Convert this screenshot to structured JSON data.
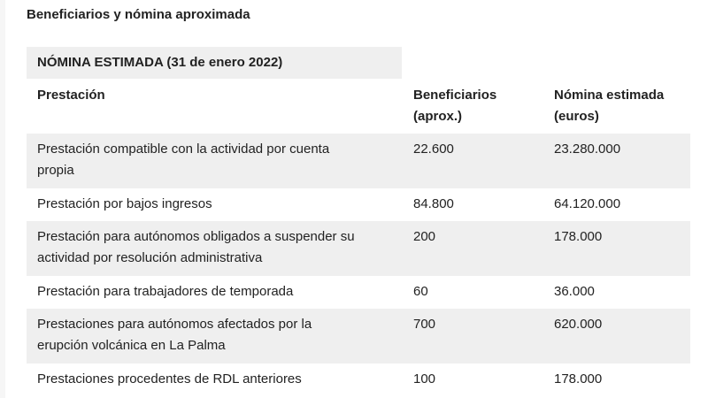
{
  "section_title": "Beneficiarios y nómina aproximada",
  "table": {
    "caption": "NÓMINA ESTIMADA (31 de enero 2022)",
    "headers": {
      "prestacion": "Prestación",
      "beneficiarios_1": "Beneficiarios",
      "beneficiarios_2": "(aprox.)",
      "nomina_1": "Nómina estimada",
      "nomina_2": "(euros)"
    },
    "rows": [
      {
        "prestacion_1": "Prestación compatible con la actividad por cuenta",
        "prestacion_2": "propia",
        "beneficiarios": "22.600",
        "nomina": "23.280.000"
      },
      {
        "prestacion_1": "Prestación por bajos ingresos",
        "prestacion_2": "",
        "beneficiarios": "84.800",
        "nomina": "64.120.000"
      },
      {
        "prestacion_1": "Prestación para autónomos obligados a suspender su",
        "prestacion_2": "actividad por resolución administrativa",
        "beneficiarios": "200",
        "nomina": "178.000"
      },
      {
        "prestacion_1": "Prestación para trabajadores de temporada",
        "prestacion_2": "",
        "beneficiarios": "60",
        "nomina": "36.000"
      },
      {
        "prestacion_1": "Prestaciones para autónomos afectados por la",
        "prestacion_2": "erupción volcánica en La Palma",
        "beneficiarios": "700",
        "nomina": "620.000"
      },
      {
        "prestacion_1": "Prestaciones procedentes de RDL anteriores",
        "prestacion_2": "",
        "beneficiarios": "100",
        "nomina": "178.000"
      }
    ]
  }
}
